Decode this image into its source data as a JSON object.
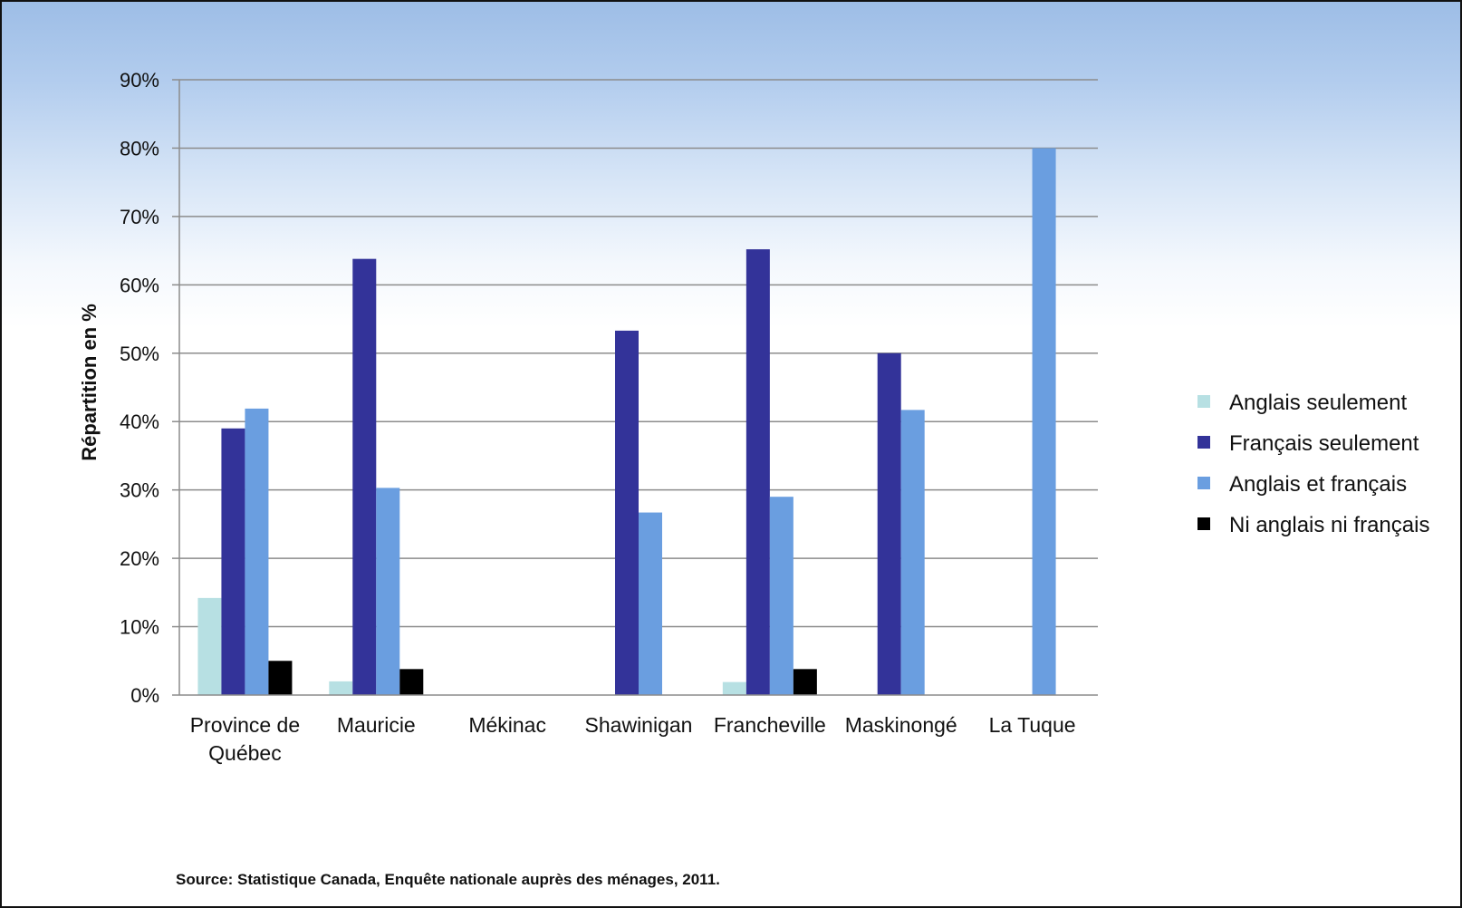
{
  "chart_data": {
    "type": "bar",
    "title": "",
    "ylabel": "Répartition en %",
    "xlabel": "",
    "ylim": [
      0,
      90
    ],
    "yticks": [
      "0%",
      "10%",
      "20%",
      "30%",
      "40%",
      "50%",
      "60%",
      "70%",
      "80%",
      "90%"
    ],
    "grid": true,
    "legend_position": "right",
    "categories": [
      [
        "Province de",
        "Québec"
      ],
      [
        "Mauricie"
      ],
      [
        "Mékinac"
      ],
      [
        "Shawinigan"
      ],
      [
        "Francheville"
      ],
      [
        "Maskinongé"
      ],
      [
        "La Tuque"
      ]
    ],
    "series": [
      {
        "name": "Anglais seulement",
        "color": "#b7e0e3",
        "values": [
          14.2,
          2.0,
          0,
          0,
          1.9,
          0,
          0
        ]
      },
      {
        "name": "Français seulement",
        "color": "#333399",
        "values": [
          39.0,
          63.8,
          0,
          53.3,
          65.2,
          50.0,
          0
        ]
      },
      {
        "name": "Anglais et français",
        "color": "#6a9ee0",
        "values": [
          41.9,
          30.3,
          0,
          26.7,
          29.0,
          41.7,
          80.0
        ]
      },
      {
        "name": "Ni anglais ni français",
        "color": "#000000",
        "values": [
          5.0,
          3.8,
          0,
          0,
          3.8,
          0,
          0
        ]
      }
    ],
    "source": "Source: Statistique Canada, Enquête nationale auprès des ménages, 2011."
  }
}
